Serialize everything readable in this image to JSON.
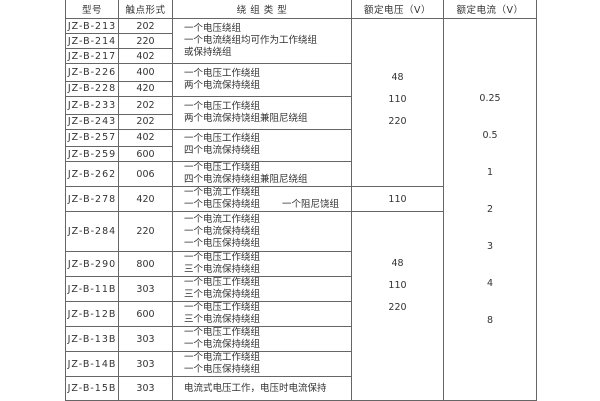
{
  "headers": {
    "model": "型号",
    "contacts": "触点形式",
    "winding": "绕  组  类  型",
    "voltage": "额定电压（V）",
    "current": "额定电流（V）"
  },
  "rows": [
    {
      "model": "JZ-B-213",
      "contacts": "202"
    },
    {
      "model": "JZ-B-214",
      "contacts": "220"
    },
    {
      "model": "JZ-B-217",
      "contacts": "402"
    },
    {
      "model": "JZ-B-226",
      "contacts": "400"
    },
    {
      "model": "JZ-B-228",
      "contacts": "420"
    },
    {
      "model": "JZ-B-233",
      "contacts": "202"
    },
    {
      "model": "JZ-B-243",
      "contacts": "202"
    },
    {
      "model": "JZ-B-257",
      "contacts": "402"
    },
    {
      "model": "JZ-B-259",
      "contacts": "600"
    },
    {
      "model": "JZ-B-262",
      "contacts": "006"
    },
    {
      "model": "JZ-B-278",
      "contacts": "420"
    },
    {
      "model": "JZ-B-284",
      "contacts": "220"
    },
    {
      "model": "JZ-B-290",
      "contacts": "800"
    },
    {
      "model": "JZ-B-11B",
      "contacts": "303"
    },
    {
      "model": "JZ-B-12B",
      "contacts": "600"
    },
    {
      "model": "JZ-B-13B",
      "contacts": "303"
    },
    {
      "model": "JZ-B-14B",
      "contacts": "303"
    },
    {
      "model": "JZ-B-15B",
      "contacts": "303"
    }
  ],
  "windings": [
    [
      "一个电压绕组",
      "一个电流绕组均可作为工作绕组",
      "或保持绕组"
    ],
    [
      "一个电压工作绕组",
      "两个电流保持绕组"
    ],
    [
      "一个电压工作绕组",
      "两个电流保持饶组兼阻尼绕组"
    ],
    [
      "一个电压工作绕组",
      "四个电流保持绕组"
    ],
    [
      "一个电压工作绕组",
      "四个电流保持绕组兼阻尼绕组"
    ],
    [
      "一个电流工作绕组",
      "一个电压保持绕组",
      "一个阻尼饶组"
    ],
    [
      "一个电流工作绕组",
      "一个电流保持绕组",
      "一个电压保持绕组"
    ],
    [
      "一个电压工作绕组",
      "三个电流保持绕组"
    ],
    [
      "一个电压工作绕组",
      "三个电流保持绕组"
    ],
    [
      "一个电压工作绕组",
      "三个电流保持绕组"
    ],
    [
      "一个电压工作绕组",
      "一个电流保持绕组"
    ],
    [
      "一个电流工作绕组",
      "一个电压保持绕组"
    ],
    [
      "电流式电压工作，电压时电流保持"
    ]
  ],
  "voltage_groups": [
    [
      "48",
      "110",
      "220"
    ],
    [
      "110"
    ],
    [
      "48",
      "110",
      "220"
    ]
  ],
  "currents": [
    "0.25",
    "0.5",
    "1",
    "2",
    "3",
    "4",
    "8"
  ]
}
